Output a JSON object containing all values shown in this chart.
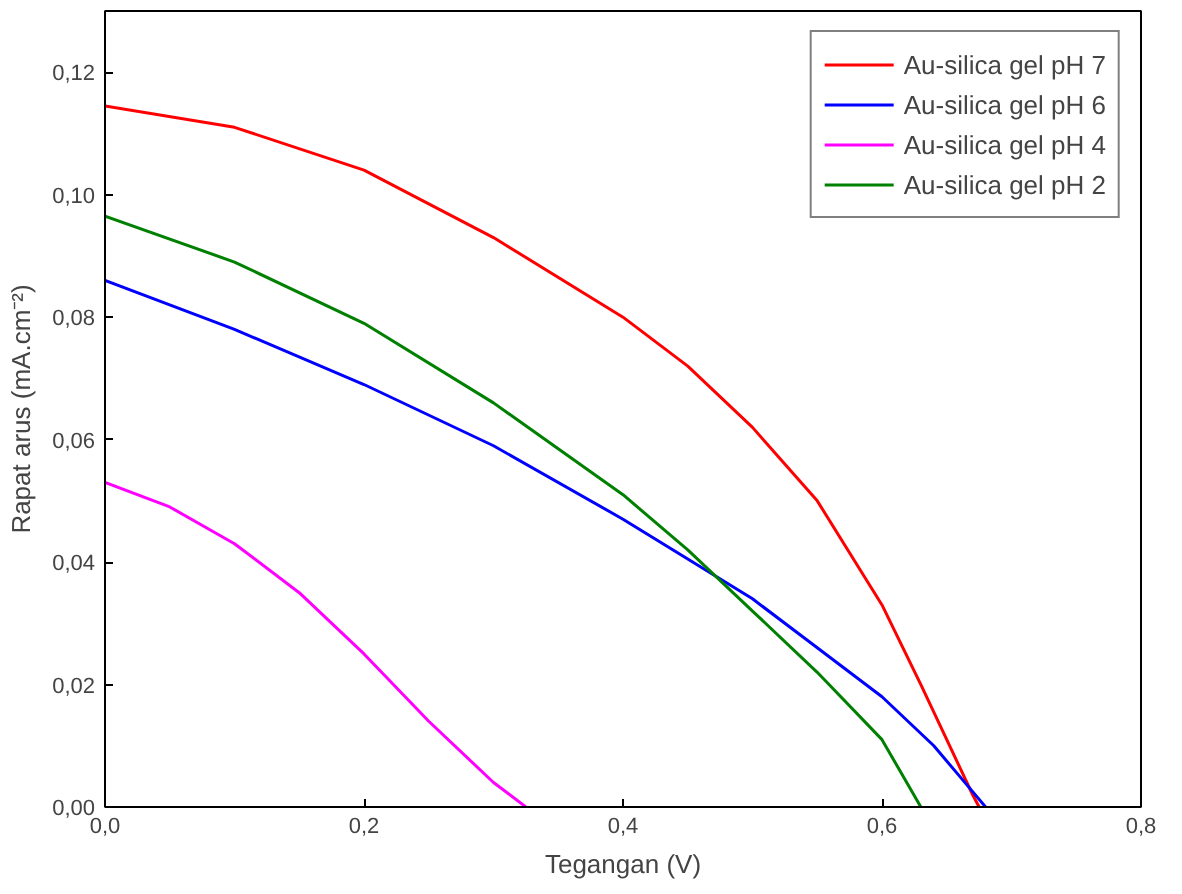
{
  "chart_data": {
    "type": "line",
    "xlabel": "Tegangan (V)",
    "ylabel": "Rapat arus (mA.cm⁻²)",
    "xlim": [
      0,
      0.8
    ],
    "ylim": [
      0,
      0.13
    ],
    "xticks": [
      {
        "value": 0,
        "label": "0,0"
      },
      {
        "value": 0.2,
        "label": "0,2"
      },
      {
        "value": 0.4,
        "label": "0,4"
      },
      {
        "value": 0.6,
        "label": "0,6"
      },
      {
        "value": 0.8,
        "label": "0,8"
      }
    ],
    "yticks": [
      {
        "value": 0,
        "label": "0,00"
      },
      {
        "value": 0.02,
        "label": "0,02"
      },
      {
        "value": 0.04,
        "label": "0,04"
      },
      {
        "value": 0.06,
        "label": "0,06"
      },
      {
        "value": 0.08,
        "label": "0,08"
      },
      {
        "value": 0.1,
        "label": "0,10"
      },
      {
        "value": 0.12,
        "label": "0,12"
      }
    ],
    "grid": false,
    "legend": "top right",
    "marker": "none",
    "line_style": "solid",
    "series": [
      {
        "name": "Au-silica gel pH 7",
        "color": "#ff0000",
        "x": [
          0,
          0.1,
          0.2,
          0.3,
          0.4,
          0.45,
          0.5,
          0.55,
          0.6,
          0.63,
          0.65,
          0.67,
          0.675
        ],
        "values": [
          0.1145,
          0.111,
          0.104,
          0.093,
          0.08,
          0.072,
          0.062,
          0.05,
          0.033,
          0.02,
          0.011,
          0.002,
          0
        ]
      },
      {
        "name": "Au-silica gel pH 6",
        "color": "#0000ff",
        "x": [
          0,
          0.1,
          0.2,
          0.3,
          0.4,
          0.5,
          0.55,
          0.6,
          0.64,
          0.66,
          0.68
        ],
        "values": [
          0.086,
          0.078,
          0.069,
          0.059,
          0.047,
          0.034,
          0.026,
          0.018,
          0.01,
          0.005,
          0
        ]
      },
      {
        "name": "Au-silica gel pH 4",
        "color": "#ff00ff",
        "x": [
          0,
          0.05,
          0.1,
          0.15,
          0.2,
          0.25,
          0.3,
          0.325
        ],
        "values": [
          0.053,
          0.049,
          0.043,
          0.035,
          0.025,
          0.014,
          0.004,
          0
        ]
      },
      {
        "name": "Au-silica gel pH 2",
        "color": "#008000",
        "x": [
          0,
          0.1,
          0.2,
          0.3,
          0.4,
          0.45,
          0.5,
          0.55,
          0.6,
          0.63
        ],
        "values": [
          0.0965,
          0.089,
          0.079,
          0.066,
          0.051,
          0.042,
          0.032,
          0.022,
          0.011,
          0
        ]
      }
    ]
  }
}
